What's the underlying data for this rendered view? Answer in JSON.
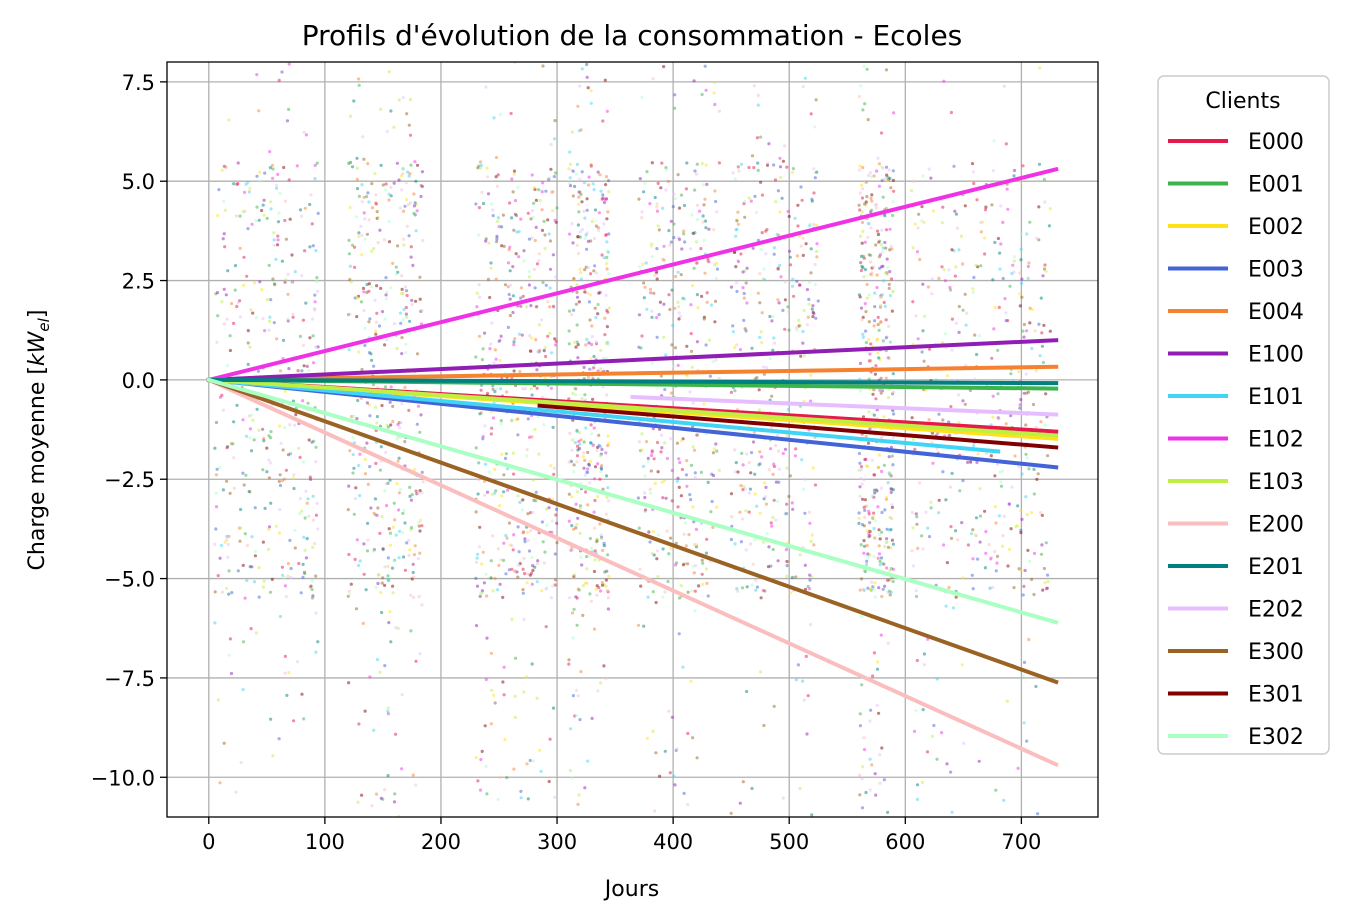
{
  "chart_data": {
    "type": "line",
    "title": "Profils d'évolution de la consommation - Ecoles",
    "xlabel": "Jours",
    "ylabel_main": "Charge moyenne [",
    "ylabel_math": "kW",
    "ylabel_sub": "el",
    "ylabel_end": "]",
    "xlim": [
      -36,
      766
    ],
    "ylim": [
      -11.0,
      8.0
    ],
    "xticks": [
      0,
      100,
      200,
      300,
      400,
      500,
      600,
      700
    ],
    "yticks": [
      7.5,
      5.0,
      2.5,
      0.0,
      -2.5,
      -5.0,
      -7.5,
      -10.0
    ],
    "ytick_labels": [
      "7.5",
      "5.0",
      "2.5",
      "0.0",
      "−2.5",
      "−5.0",
      "−7.5",
      "−10.0"
    ],
    "grid": true,
    "legend_title": "Clients",
    "legend_position": "outside-right",
    "series": [
      {
        "name": "E000",
        "color": "#e6194b",
        "x": [
          0,
          730
        ],
        "y": [
          0,
          -1.3
        ]
      },
      {
        "name": "E001",
        "color": "#3cb44b",
        "x": [
          0,
          730
        ],
        "y": [
          0,
          -0.22
        ]
      },
      {
        "name": "E002",
        "color": "#ffe119",
        "x": [
          0,
          730
        ],
        "y": [
          0,
          -1.48
        ]
      },
      {
        "name": "E003",
        "color": "#4363d8",
        "x": [
          0,
          730
        ],
        "y": [
          0,
          -2.2
        ]
      },
      {
        "name": "E004",
        "color": "#f58231",
        "x": [
          0,
          730
        ],
        "y": [
          0,
          0.33
        ]
      },
      {
        "name": "E100",
        "color": "#911eb4",
        "x": [
          0,
          730
        ],
        "y": [
          0,
          1.0
        ]
      },
      {
        "name": "E101",
        "color": "#42d4f4",
        "x": [
          0,
          680
        ],
        "y": [
          0,
          -1.8
        ]
      },
      {
        "name": "E102",
        "color": "#f032e6",
        "x": [
          0,
          730
        ],
        "y": [
          0,
          5.3
        ]
      },
      {
        "name": "E103",
        "color": "#bfef45",
        "x": [
          0,
          730
        ],
        "y": [
          0,
          -1.4
        ]
      },
      {
        "name": "E200",
        "color": "#fabebe",
        "x": [
          0,
          730
        ],
        "y": [
          0,
          -9.68
        ]
      },
      {
        "name": "E201",
        "color": "#008080",
        "x": [
          0,
          730
        ],
        "y": [
          0,
          -0.08
        ]
      },
      {
        "name": "E202",
        "color": "#e6beff",
        "x": [
          365,
          730
        ],
        "y": [
          -0.43,
          -0.87
        ]
      },
      {
        "name": "E300",
        "color": "#9a6324",
        "x": [
          0,
          730
        ],
        "y": [
          0,
          -7.6
        ]
      },
      {
        "name": "E301",
        "color": "#800000",
        "x": [
          285,
          730
        ],
        "y": [
          -0.65,
          -1.7
        ]
      },
      {
        "name": "E302",
        "color": "#aaffc3",
        "x": [
          0,
          730
        ],
        "y": [
          0,
          -6.1
        ]
      }
    ]
  }
}
